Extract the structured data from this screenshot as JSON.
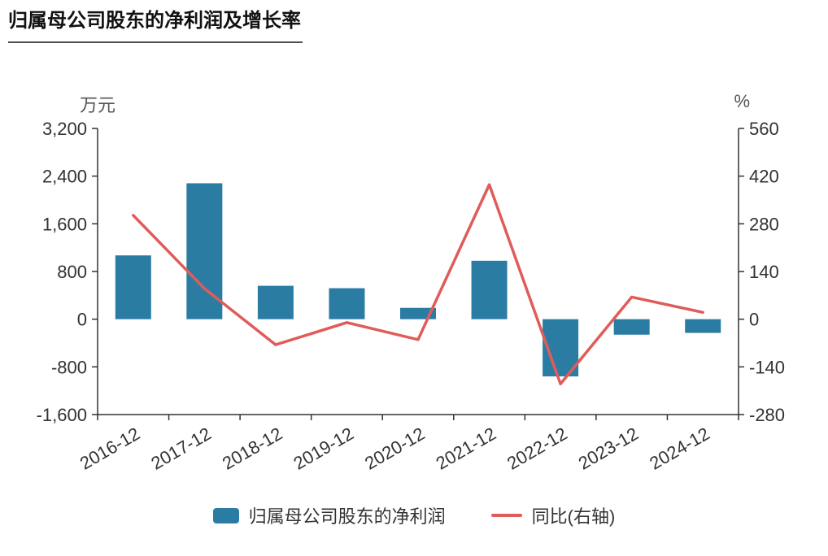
{
  "title": "归属母公司股东的净利润及增长率",
  "chart_data": {
    "type": "combo",
    "categories": [
      "2016-12",
      "2017-12",
      "2018-12",
      "2019-12",
      "2020-12",
      "2021-12",
      "2022-12",
      "2023-12",
      "2024-12"
    ],
    "series": [
      {
        "name": "归属母公司股东的净利润",
        "type": "bar",
        "axis": "left",
        "color": "#2b7ca3",
        "values": [
          1070,
          2280,
          560,
          520,
          190,
          980,
          -960,
          -260,
          -230
        ]
      },
      {
        "name": "同比(右轴)",
        "type": "line",
        "axis": "right",
        "color": "#e05c5a",
        "values": [
          305,
          90,
          -75,
          -10,
          -60,
          395,
          -190,
          65,
          20
        ]
      }
    ],
    "left_axis": {
      "label": "万元",
      "min": -1600,
      "max": 3200,
      "tick_step": 800,
      "tick_labels": [
        "3,200",
        "2,400",
        "1,600",
        "800",
        "0",
        "-800",
        "-1,600"
      ]
    },
    "right_axis": {
      "label": "%",
      "min": -280,
      "max": 560,
      "tick_step": 140,
      "tick_labels": [
        "560",
        "420",
        "280",
        "140",
        "0",
        "-140",
        "-280"
      ]
    },
    "legend": [
      {
        "label": "归属母公司股东的净利润",
        "type": "bar"
      },
      {
        "label": "同比(右轴)",
        "type": "line"
      }
    ],
    "grid": false,
    "legend_position": "bottom"
  }
}
